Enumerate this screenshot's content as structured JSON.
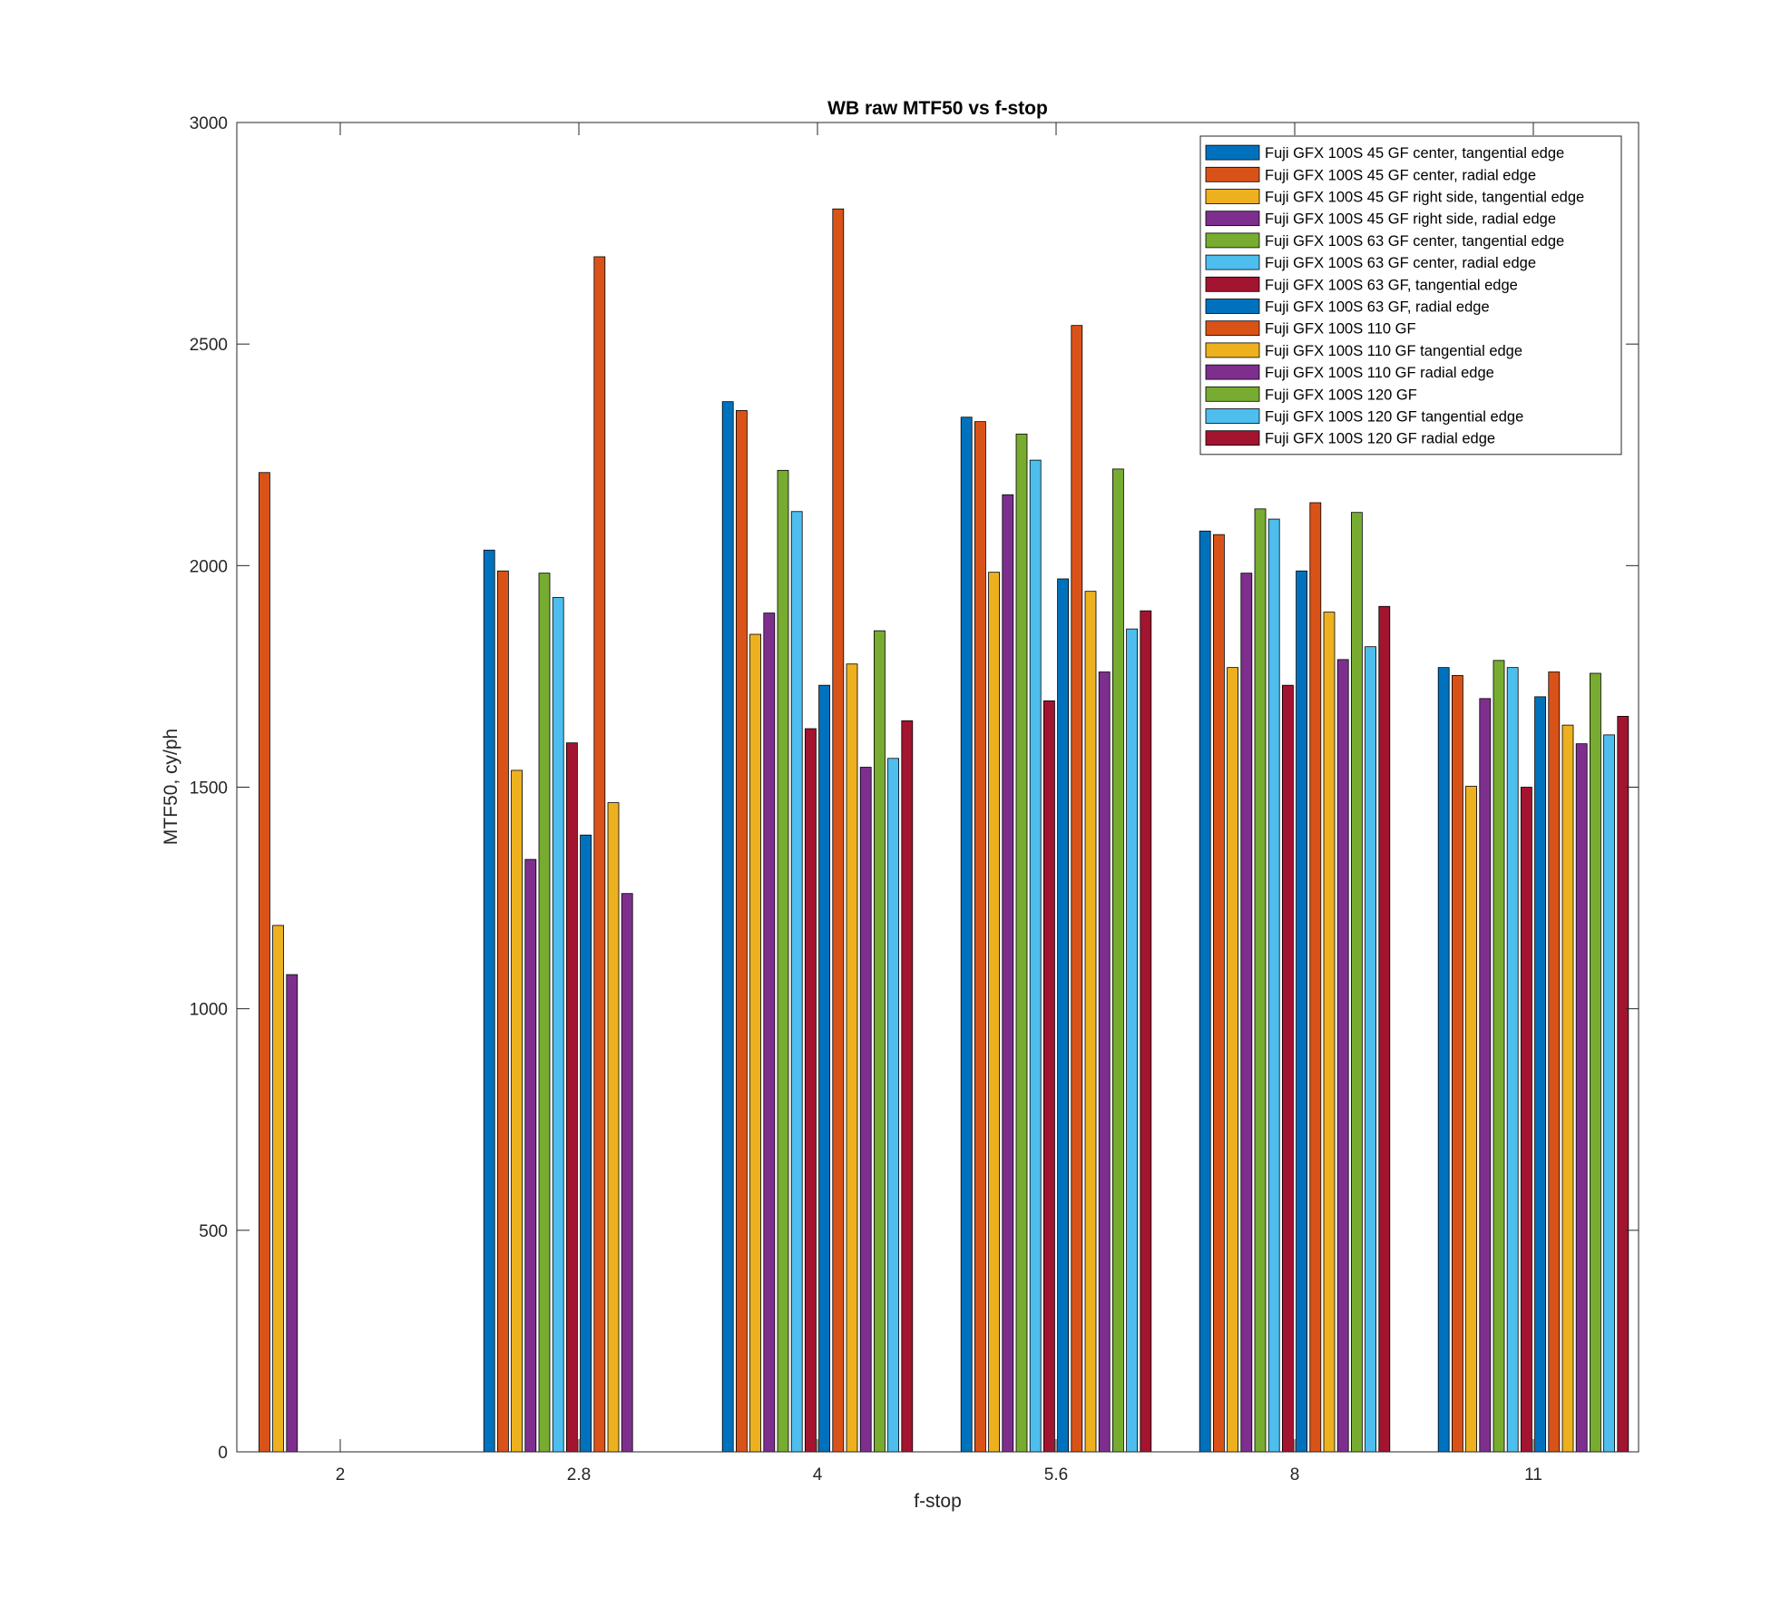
{
  "chart_data": {
    "type": "bar",
    "title": "WB raw MTF50 vs f-stop",
    "xlabel": "f-stop",
    "ylabel": "MTF50, cy/ph",
    "ylim": [
      0,
      3000
    ],
    "yticks": [
      0,
      500,
      1000,
      1500,
      2000,
      2500,
      3000
    ],
    "categories": [
      "2",
      "2.8",
      "4",
      "5.6",
      "8",
      "11"
    ],
    "legend_position": "top-right",
    "grid": false,
    "series": [
      {
        "name": "Fuji GFX 100S 45 GF center, tangential edge",
        "color": "#0072BD",
        "values": [
          null,
          2035,
          2370,
          2335,
          2078,
          1770
        ]
      },
      {
        "name": "Fuji GFX 100S 45 GF center, radial edge",
        "color": "#D95319",
        "values": [
          2210,
          1988,
          2350,
          2325,
          2070,
          1752
        ]
      },
      {
        "name": "Fuji GFX 100S 45 GF right side, tangential edge",
        "color": "#EDB120",
        "values": [
          1188,
          1538,
          1845,
          1985,
          1770,
          1502
        ]
      },
      {
        "name": "Fuji GFX 100S 45 GF right side, radial edge",
        "color": "#7E2F8E",
        "values": [
          1077,
          1337,
          1893,
          2160,
          1983,
          1700
        ]
      },
      {
        "name": "Fuji GFX 100S 63 GF center, tangential edge",
        "color": "#77AC30",
        "values": [
          null,
          1983,
          2215,
          2297,
          2128,
          1786
        ]
      },
      {
        "name": "Fuji GFX 100S 63 GF center, radial edge",
        "color": "#4DBEEE",
        "values": [
          null,
          1928,
          2122,
          2238,
          2105,
          1770
        ]
      },
      {
        "name": "Fuji GFX 100S 63 GF, tangential edge",
        "color": "#A2142F",
        "values": [
          null,
          1600,
          1632,
          1695,
          1730,
          1500
        ]
      },
      {
        "name": "Fuji GFX 100S 63 GF, radial edge",
        "color": "#0072BD",
        "values": [
          null,
          1392,
          1730,
          1970,
          1988,
          1704
        ]
      },
      {
        "name": "Fuji GFX 100S 110 GF",
        "color": "#D95319",
        "values": [
          null,
          2697,
          2805,
          2542,
          2142,
          1760
        ]
      },
      {
        "name": "Fuji GFX 100S 110 GF tangential edge",
        "color": "#EDB120",
        "values": [
          null,
          1465,
          1778,
          1942,
          1895,
          1640
        ]
      },
      {
        "name": "Fuji GFX 100S 110 GF radial edge",
        "color": "#7E2F8E",
        "values": [
          null,
          1260,
          1545,
          1760,
          1788,
          1598
        ]
      },
      {
        "name": "Fuji GFX 100S 120 GF",
        "color": "#77AC30",
        "values": [
          null,
          null,
          1853,
          2218,
          2120,
          1757
        ]
      },
      {
        "name": "Fuji GFX 100S 120 GF tangential edge",
        "color": "#4DBEEE",
        "values": [
          null,
          null,
          1565,
          1857,
          1817,
          1618
        ]
      },
      {
        "name": "Fuji GFX 100S 120 GF radial edge",
        "color": "#A2142F",
        "values": [
          null,
          null,
          1650,
          1898,
          1908,
          1660
        ]
      }
    ]
  }
}
